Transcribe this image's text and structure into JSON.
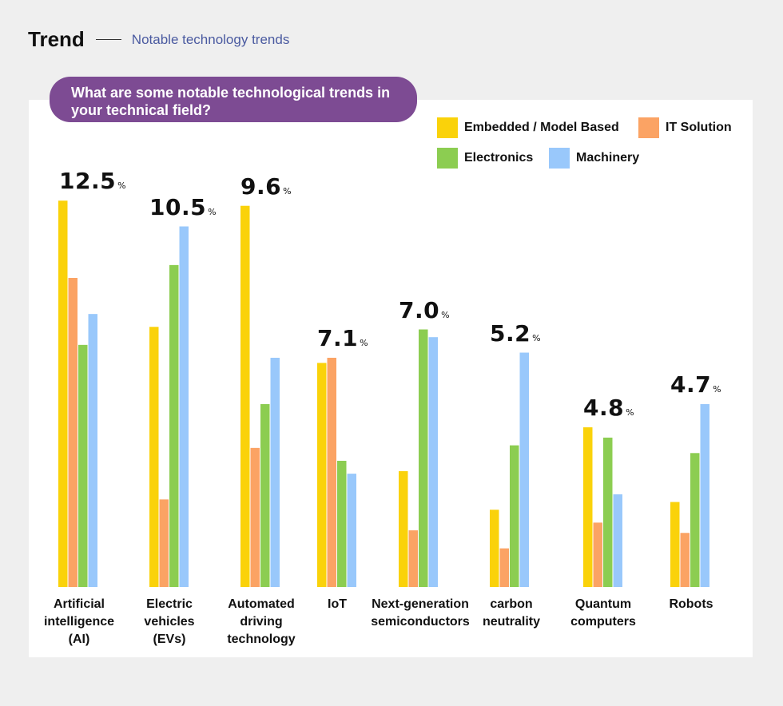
{
  "header": {
    "title": "Trend",
    "subtitle": "Notable technology trends"
  },
  "question": "What are some notable technological trends in your technical field?",
  "colors": {
    "embedded": "#fad20a",
    "it": "#fba364",
    "electronics": "#8ccd51",
    "machinery": "#99c8fb",
    "question_bg": "#7d4b93"
  },
  "chart_data": {
    "type": "bar",
    "categories": [
      "Artificial intelligence (AI)",
      "Electric vehicles (EVs)",
      "Automated driving technology",
      "IoT",
      "Next-generation semiconductors",
      "carbon neutrality",
      "Quantum computers",
      "Robots"
    ],
    "totals": [
      "12.5",
      "10.5",
      "9.6",
      "7.1",
      "7.0",
      "5.2",
      "4.8",
      "4.7"
    ],
    "total_unit": "%",
    "series": [
      {
        "name": "Embedded / Model Based",
        "color": "#fad20a",
        "values": [
          15.0,
          10.1,
          14.8,
          8.7,
          4.5,
          3.0,
          6.2,
          3.3
        ]
      },
      {
        "name": "IT Solution",
        "color": "#fba364",
        "values": [
          12.0,
          3.4,
          5.4,
          8.9,
          2.2,
          1.5,
          2.5,
          2.1
        ]
      },
      {
        "name": "Electronics",
        "color": "#8ccd51",
        "values": [
          9.4,
          12.5,
          7.1,
          4.9,
          10.0,
          5.5,
          5.8,
          5.2
        ]
      },
      {
        "name": "Machinery",
        "color": "#99c8fb",
        "values": [
          10.6,
          14.0,
          8.9,
          4.4,
          9.7,
          9.1,
          3.6,
          7.1
        ]
      }
    ],
    "ylim": [
      0,
      16
    ],
    "axes_visible": false,
    "grid": false,
    "legend": "top-right"
  }
}
